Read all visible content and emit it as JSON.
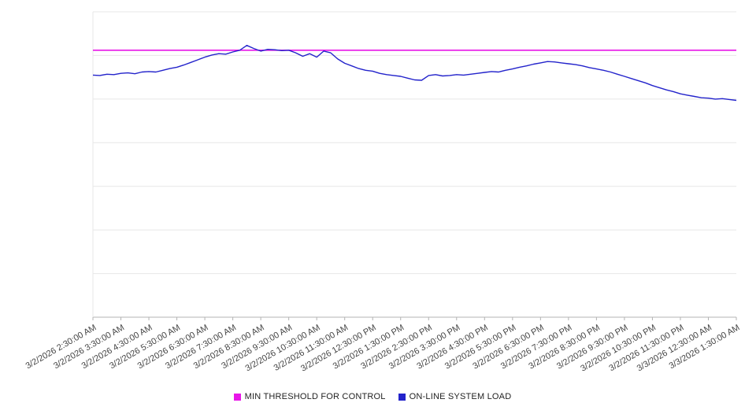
{
  "chart_data": {
    "type": "line",
    "title": "",
    "xlabel": "",
    "ylabel": "",
    "ylim": [
      0,
      70
    ],
    "grid_step": 10,
    "grid": true,
    "legend_position": "bottom",
    "x_labels": [
      "3/2/2026 2:30:00 AM",
      "3/2/2026 3:30:00 AM",
      "3/2/2026 4:30:00 AM",
      "3/2/2026 5:30:00 AM",
      "3/2/2026 6:30:00 AM",
      "3/2/2026 7:30:00 AM",
      "3/2/2026 8:30:00 AM",
      "3/2/2026 9:30:00 AM",
      "3/2/2026 10:30:00 AM",
      "3/2/2026 11:30:00 AM",
      "3/2/2026 12:30:00 PM",
      "3/2/2026 1:30:00 PM",
      "3/2/2026 2:30:00 PM",
      "3/2/2026 3:30:00 PM",
      "3/2/2026 4:30:00 PM",
      "3/2/2026 5:30:00 PM",
      "3/2/2026 6:30:00 PM",
      "3/2/2026 7:30:00 PM",
      "3/2/2026 8:30:00 PM",
      "3/2/2026 9:30:00 PM",
      "3/2/2026 10:30:00 PM",
      "3/2/2026 11:30:00 PM",
      "3/3/2026 12:30:00 AM",
      "3/3/2026 1:30:00 AM"
    ],
    "series": [
      {
        "name": "MIN THRESHOLD FOR CONTROL",
        "type": "constant",
        "color": "#e816e8",
        "value": 61.2
      },
      {
        "name": "ON-LINE SYSTEM LOAD",
        "type": "line",
        "color": "#2323cb",
        "values": [
          55.5,
          55.4,
          55.7,
          55.6,
          55.9,
          56.0,
          55.8,
          56.2,
          56.3,
          56.2,
          56.6,
          57.0,
          57.3,
          57.8,
          58.4,
          59.0,
          59.6,
          60.1,
          60.4,
          60.3,
          60.8,
          61.2,
          62.3,
          61.6,
          61.0,
          61.4,
          61.3,
          61.1,
          61.2,
          60.6,
          59.8,
          60.4,
          59.6,
          61.0,
          60.6,
          59.2,
          58.2,
          57.6,
          57.0,
          56.6,
          56.4,
          55.9,
          55.6,
          55.4,
          55.2,
          54.8,
          54.4,
          54.3,
          55.4,
          55.6,
          55.3,
          55.4,
          55.6,
          55.5,
          55.7,
          55.9,
          56.1,
          56.3,
          56.2,
          56.6,
          56.9,
          57.3,
          57.6,
          58.0,
          58.3,
          58.6,
          58.5,
          58.3,
          58.1,
          57.9,
          57.6,
          57.2,
          56.9,
          56.6,
          56.2,
          55.7,
          55.2,
          54.7,
          54.2,
          53.7,
          53.1,
          52.6,
          52.1,
          51.7,
          51.2,
          50.9,
          50.6,
          50.3,
          50.2,
          50.0,
          50.1,
          49.9,
          49.7
        ]
      }
    ]
  },
  "colors": {
    "grid": "#e7e7e7",
    "axis": "#b3b3b3",
    "tick_label": "#444444",
    "background": "#ffffff"
  }
}
